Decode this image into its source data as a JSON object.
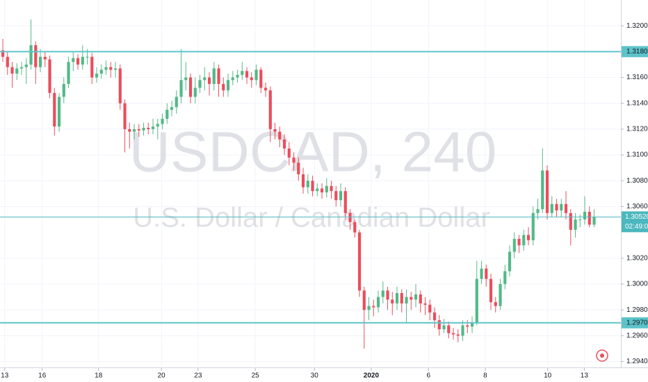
{
  "chart_data": {
    "type": "candlestick",
    "title": "USDCAD, 240",
    "subtitle": "U.S. Dollar / Canadian Dollar",
    "up_color": "#53b987",
    "down_color": "#eb4d5c",
    "open": [
      1.3181,
      1.3176,
      1.3168,
      1.3163,
      1.3167,
      1.3168,
      1.317,
      1.3185,
      1.3168,
      1.3176,
      1.3174,
      1.3148,
      1.3122,
      1.3145,
      1.3155,
      1.3172,
      1.3175,
      1.317,
      1.3176,
      1.3176,
      1.316,
      1.3163,
      1.3166,
      1.3168,
      1.3166,
      1.3167,
      1.314,
      1.312,
      1.3118,
      1.312,
      1.3119,
      1.3121,
      1.312,
      1.3122,
      1.3124,
      1.3128,
      1.3135,
      1.3137,
      1.3145,
      1.3158,
      1.316,
      1.3145,
      1.3152,
      1.3158,
      1.316,
      1.3155,
      1.3167,
      1.3155,
      1.315,
      1.3158,
      1.316,
      1.3162,
      1.3165,
      1.316,
      1.3158,
      1.3166,
      1.3152,
      1.315,
      1.312,
      1.3118,
      1.3112,
      1.3105,
      1.3098,
      1.3094,
      1.3085,
      1.3075,
      1.308,
      1.3072,
      1.3074,
      1.3071,
      1.3076,
      1.3072,
      1.3065,
      1.3072,
      1.3055,
      1.3048,
      1.304,
      1.2995,
      1.298,
      1.2983,
      1.2982,
      1.299,
      1.2995,
      1.2988,
      1.2985,
      1.2993,
      1.2985,
      1.299,
      1.2988,
      1.2992,
      1.2985,
      1.2984,
      1.2978,
      1.2972,
      1.2965,
      1.2968,
      1.2962,
      1.2961,
      1.296,
      1.2968,
      1.2967,
      1.297,
      1.3004,
      1.3012,
      1.3004,
      1.2986,
      1.2983,
      1.3,
      1.301,
      1.3025,
      1.3035,
      1.303,
      1.3038,
      1.3034,
      1.3055,
      1.3058,
      1.3088,
      1.3055,
      1.3062,
      1.3057,
      1.3062,
      1.3055,
      1.3042,
      1.305,
      1.305,
      1.3056,
      1.3046
    ],
    "high": [
      1.319,
      1.318,
      1.3172,
      1.3171,
      1.3172,
      1.3175,
      1.3205,
      1.3188,
      1.3182,
      1.318,
      1.3177,
      1.3152,
      1.3148,
      1.316,
      1.3176,
      1.318,
      1.3178,
      1.3185,
      1.3182,
      1.3179,
      1.3168,
      1.317,
      1.3173,
      1.3172,
      1.3172,
      1.317,
      1.3143,
      1.3125,
      1.3124,
      1.3124,
      1.3125,
      1.3125,
      1.3128,
      1.3128,
      1.3132,
      1.314,
      1.3142,
      1.315,
      1.3182,
      1.3172,
      1.3163,
      1.316,
      1.3162,
      1.3168,
      1.3164,
      1.3172,
      1.317,
      1.316,
      1.3163,
      1.3165,
      1.3166,
      1.3172,
      1.3168,
      1.3164,
      1.317,
      1.3168,
      1.3156,
      1.3153,
      1.3125,
      1.3122,
      1.3116,
      1.311,
      1.3102,
      1.3098,
      1.309,
      1.3085,
      1.3084,
      1.3078,
      1.3078,
      1.3082,
      1.308,
      1.3076,
      1.3078,
      1.3075,
      1.3058,
      1.305,
      1.3042,
      1.2998,
      1.299,
      1.2988,
      1.2995,
      1.3002,
      1.2998,
      1.2994,
      1.2998,
      1.2996,
      1.2996,
      1.2994,
      1.3,
      1.2995,
      1.299,
      1.2988,
      1.2982,
      1.2976,
      1.2973,
      1.2971,
      1.2966,
      1.2965,
      1.2972,
      1.2972,
      1.2975,
      1.3018,
      1.3018,
      1.3015,
      1.3008,
      1.299,
      1.3004,
      1.3015,
      1.303,
      1.304,
      1.3038,
      1.3042,
      1.3044,
      1.306,
      1.3066,
      1.3105,
      1.3092,
      1.3068,
      1.3066,
      1.3066,
      1.3072,
      1.3058,
      1.3055,
      1.3054,
      1.3068,
      1.306,
      1.3058
    ],
    "low": [
      1.3172,
      1.3162,
      1.3152,
      1.3158,
      1.3162,
      1.3155,
      1.3166,
      1.3155,
      1.3164,
      1.3168,
      1.3144,
      1.3115,
      1.3118,
      1.314,
      1.3152,
      1.3165,
      1.3166,
      1.3166,
      1.317,
      1.3155,
      1.3156,
      1.3159,
      1.3162,
      1.316,
      1.316,
      1.3135,
      1.3102,
      1.3105,
      1.3112,
      1.3114,
      1.3115,
      1.3116,
      1.3116,
      1.3112,
      1.312,
      1.3124,
      1.313,
      1.3132,
      1.314,
      1.315,
      1.314,
      1.314,
      1.3148,
      1.315,
      1.3146,
      1.315,
      1.3145,
      1.3145,
      1.3145,
      1.3154,
      1.3156,
      1.3158,
      1.3155,
      1.3152,
      1.3154,
      1.3148,
      1.3145,
      1.311,
      1.3112,
      1.3106,
      1.31,
      1.3092,
      1.3088,
      1.308,
      1.307,
      1.307,
      1.3068,
      1.3068,
      1.3066,
      1.3067,
      1.3066,
      1.306,
      1.306,
      1.305,
      1.3042,
      1.3036,
      1.299,
      1.295,
      1.2972,
      1.2975,
      1.2978,
      1.2985,
      1.298,
      1.2976,
      1.298,
      1.2978,
      1.297,
      1.298,
      1.2982,
      1.2978,
      1.2976,
      1.2972,
      1.2966,
      1.296,
      1.2962,
      1.2958,
      1.2957,
      1.2955,
      1.2956,
      1.2962,
      1.2962,
      1.2968,
      1.3,
      1.2998,
      1.298,
      1.2978,
      1.298,
      1.2996,
      1.3006,
      1.302,
      1.3024,
      1.3026,
      1.303,
      1.303,
      1.305,
      1.3055,
      1.305,
      1.3052,
      1.3052,
      1.3052,
      1.305,
      1.303,
      1.3036,
      1.3044,
      1.3046,
      1.3044,
      1.3044
    ],
    "close": [
      1.3176,
      1.3168,
      1.3163,
      1.3167,
      1.3168,
      1.317,
      1.3185,
      1.3168,
      1.3176,
      1.3174,
      1.3148,
      1.3122,
      1.3145,
      1.3155,
      1.3172,
      1.3175,
      1.317,
      1.3176,
      1.3176,
      1.316,
      1.3163,
      1.3166,
      1.3168,
      1.3166,
      1.3167,
      1.314,
      1.312,
      1.3118,
      1.312,
      1.3119,
      1.3121,
      1.312,
      1.3122,
      1.3124,
      1.3128,
      1.3135,
      1.3137,
      1.3145,
      1.3158,
      1.316,
      1.3145,
      1.3152,
      1.3158,
      1.316,
      1.3155,
      1.3167,
      1.3155,
      1.315,
      1.3158,
      1.316,
      1.3162,
      1.3165,
      1.316,
      1.3158,
      1.3166,
      1.3152,
      1.315,
      1.312,
      1.3118,
      1.3112,
      1.3105,
      1.3098,
      1.3094,
      1.3085,
      1.3075,
      1.308,
      1.3072,
      1.3074,
      1.3071,
      1.3076,
      1.3072,
      1.3065,
      1.3072,
      1.3055,
      1.3048,
      1.304,
      1.2995,
      1.298,
      1.2983,
      1.2982,
      1.299,
      1.2995,
      1.2988,
      1.2985,
      1.2993,
      1.2985,
      1.299,
      1.2988,
      1.2992,
      1.2985,
      1.2984,
      1.2978,
      1.2972,
      1.2965,
      1.2968,
      1.2962,
      1.2961,
      1.296,
      1.2968,
      1.2967,
      1.297,
      1.3004,
      1.3012,
      1.3004,
      1.2986,
      1.2983,
      1.3,
      1.301,
      1.3025,
      1.3035,
      1.303,
      1.3038,
      1.3034,
      1.3055,
      1.3058,
      1.3088,
      1.3055,
      1.3062,
      1.3057,
      1.3062,
      1.3055,
      1.3042,
      1.305,
      1.305,
      1.3056,
      1.3046,
      1.3052
    ],
    "xlim": [
      -0.6,
      131.7
    ],
    "xticks": [
      {
        "value": 0.4,
        "label": "13"
      },
      {
        "value": 8.4,
        "label": "16"
      },
      {
        "value": 20.4,
        "label": "18"
      },
      {
        "value": 33.8,
        "label": "20"
      },
      {
        "value": 41.6,
        "label": "23"
      },
      {
        "value": 53.8,
        "label": "25"
      },
      {
        "value": 66.4,
        "label": "30"
      },
      {
        "value": 78.5,
        "label": "2020"
      },
      {
        "value": 90.7,
        "label": "6"
      },
      {
        "value": 102.8,
        "label": "8"
      },
      {
        "value": 116.1,
        "label": "10"
      },
      {
        "value": 123.9,
        "label": "13"
      }
    ],
    "ylim": [
      1.2936,
      1.322
    ],
    "yticks": [
      {
        "value": 1.294,
        "label": "1.29400"
      },
      {
        "value": 1.296,
        "label": "1.29600"
      },
      {
        "value": 1.298,
        "label": "1.29800"
      },
      {
        "value": 1.3,
        "label": "1.30000"
      },
      {
        "value": 1.302,
        "label": "1.30200"
      },
      {
        "value": 1.306,
        "label": "1.30600"
      },
      {
        "value": 1.308,
        "label": "1.30800"
      },
      {
        "value": 1.31,
        "label": "1.31000"
      },
      {
        "value": 1.312,
        "label": "1.31200"
      },
      {
        "value": 1.314,
        "label": "1.31400"
      },
      {
        "value": 1.316,
        "label": "1.31600"
      },
      {
        "value": 1.32,
        "label": "1.32000"
      }
    ],
    "grid": true,
    "hlines": [
      {
        "value": 1.318,
        "label": "1.31800",
        "color": "#5cc3c9"
      },
      {
        "value": 1.297,
        "label": "1.29700",
        "color": "#5cc3c9"
      }
    ],
    "last_price": {
      "value": 1.3052,
      "label": "1.30520",
      "color": "#4bb7bf"
    },
    "countdown": "02:49:08"
  }
}
